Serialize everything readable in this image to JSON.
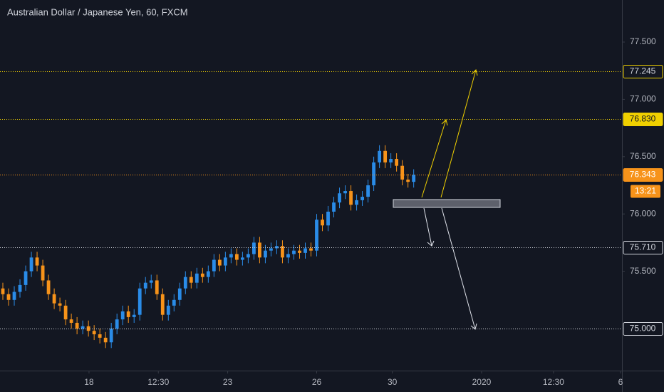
{
  "chart_data": {
    "type": "candlestick",
    "title": "Australian Dollar / Japanese Yen, 60, FXCM",
    "up_color": "#2a8ce8",
    "down_color": "#f7931a",
    "open": [
      75.35,
      75.3,
      75.25,
      75.32,
      75.38,
      75.5,
      75.62,
      75.55,
      75.42,
      75.3,
      75.22,
      75.2,
      75.08,
      75.05,
      75.0,
      75.02,
      74.98,
      74.95,
      74.92,
      74.88,
      75.0,
      75.08,
      75.15,
      75.1,
      75.12,
      75.35,
      75.4,
      75.42,
      75.3,
      75.12,
      75.2,
      75.25,
      75.35,
      75.45,
      75.4,
      75.48,
      75.45,
      75.5,
      75.6,
      75.55,
      75.62,
      75.65,
      75.6,
      75.62,
      75.65,
      75.75,
      75.62,
      75.68,
      75.7,
      75.72,
      75.62,
      75.65,
      75.68,
      75.66,
      75.7,
      75.68,
      75.95,
      75.9,
      76.02,
      76.1,
      76.18,
      76.2,
      76.08,
      76.12,
      76.15,
      76.25,
      76.45,
      76.55,
      76.45,
      76.48,
      76.42,
      76.3,
      76.28
    ],
    "high": [
      75.4,
      75.35,
      75.37,
      75.43,
      75.55,
      75.67,
      75.67,
      75.6,
      75.47,
      75.35,
      75.27,
      75.25,
      75.13,
      75.1,
      75.07,
      75.07,
      75.03,
      75.0,
      74.97,
      75.05,
      75.13,
      75.2,
      75.2,
      75.17,
      75.4,
      75.45,
      75.47,
      75.47,
      75.35,
      75.25,
      75.3,
      75.4,
      75.5,
      75.5,
      75.53,
      75.53,
      75.55,
      75.65,
      75.65,
      75.67,
      75.7,
      75.7,
      75.67,
      75.7,
      75.8,
      75.8,
      75.73,
      75.75,
      75.77,
      75.77,
      75.7,
      75.73,
      75.73,
      75.75,
      75.75,
      76.0,
      76.0,
      76.07,
      76.15,
      76.23,
      76.25,
      76.25,
      76.17,
      76.2,
      76.3,
      76.5,
      76.6,
      76.6,
      76.53,
      76.53,
      76.47,
      76.35,
      76.39
    ],
    "low": [
      75.25,
      75.2,
      75.2,
      75.27,
      75.33,
      75.45,
      75.5,
      75.37,
      75.25,
      75.17,
      75.15,
      75.03,
      75.0,
      74.95,
      74.95,
      74.93,
      74.9,
      74.87,
      74.83,
      74.83,
      74.95,
      75.03,
      75.05,
      75.05,
      75.07,
      75.3,
      75.35,
      75.25,
      75.07,
      75.07,
      75.15,
      75.2,
      75.3,
      75.35,
      75.35,
      75.4,
      75.4,
      75.45,
      75.5,
      75.5,
      75.57,
      75.55,
      75.55,
      75.57,
      75.6,
      75.57,
      75.57,
      75.63,
      75.65,
      75.57,
      75.57,
      75.6,
      75.61,
      75.61,
      75.63,
      75.63,
      75.85,
      75.85,
      75.97,
      76.05,
      76.13,
      76.03,
      76.03,
      76.07,
      76.1,
      76.2,
      76.4,
      76.4,
      76.4,
      76.37,
      76.25,
      76.23,
      76.23
    ],
    "close": [
      75.3,
      75.25,
      75.32,
      75.38,
      75.5,
      75.62,
      75.55,
      75.42,
      75.3,
      75.22,
      75.2,
      75.08,
      75.05,
      75.0,
      75.02,
      74.98,
      74.95,
      74.92,
      74.88,
      75.0,
      75.08,
      75.15,
      75.1,
      75.12,
      75.35,
      75.4,
      75.42,
      75.3,
      75.12,
      75.2,
      75.25,
      75.35,
      75.45,
      75.4,
      75.48,
      75.45,
      75.5,
      75.6,
      75.55,
      75.62,
      75.65,
      75.6,
      75.62,
      75.65,
      75.75,
      75.62,
      75.68,
      75.7,
      75.72,
      75.62,
      75.65,
      75.68,
      75.66,
      75.7,
      75.68,
      75.95,
      75.9,
      76.02,
      76.1,
      76.18,
      76.2,
      76.08,
      76.12,
      76.15,
      76.25,
      76.45,
      76.55,
      76.45,
      76.48,
      76.42,
      76.3,
      76.28,
      76.343
    ],
    "xlim": [
      0,
      109
    ],
    "xticks": [
      {
        "value": 15.6,
        "label": "18"
      },
      {
        "value": 27.75,
        "label": "12:30"
      },
      {
        "value": 39.9,
        "label": "23"
      },
      {
        "value": 55.5,
        "label": "26"
      },
      {
        "value": 68.75,
        "label": "30"
      },
      {
        "value": 84.4,
        "label": "2020"
      },
      {
        "value": 97,
        "label": "12:30"
      },
      {
        "value": 108.75,
        "label": "6"
      }
    ],
    "ylim": [
      74.633,
      77.867
    ],
    "yticks": [
      {
        "value": 75,
        "label": "75.000"
      },
      {
        "value": 75.5,
        "label": "75.500"
      },
      {
        "value": 76,
        "label": "76.000"
      },
      {
        "value": 76.5,
        "label": "76.500"
      },
      {
        "value": 77,
        "label": "77.000"
      },
      {
        "value": 77.5,
        "label": "77.500"
      }
    ],
    "levels": [
      {
        "value": 77.245,
        "label": "77.245",
        "color": "#f0d000",
        "style": "outline"
      },
      {
        "value": 76.83,
        "label": "76.830",
        "color": "#f0d000",
        "style": "filled"
      },
      {
        "value": 76.343,
        "label": "76.343",
        "color": "#f7931a",
        "style": "filled"
      },
      {
        "value": 75.71,
        "label": "75.710",
        "color": "#d1d4dc",
        "style": "outline"
      },
      {
        "value": 75,
        "label": "75.000",
        "color": "#d1d4dc",
        "style": "outline"
      }
    ],
    "countdown": "13:21"
  }
}
